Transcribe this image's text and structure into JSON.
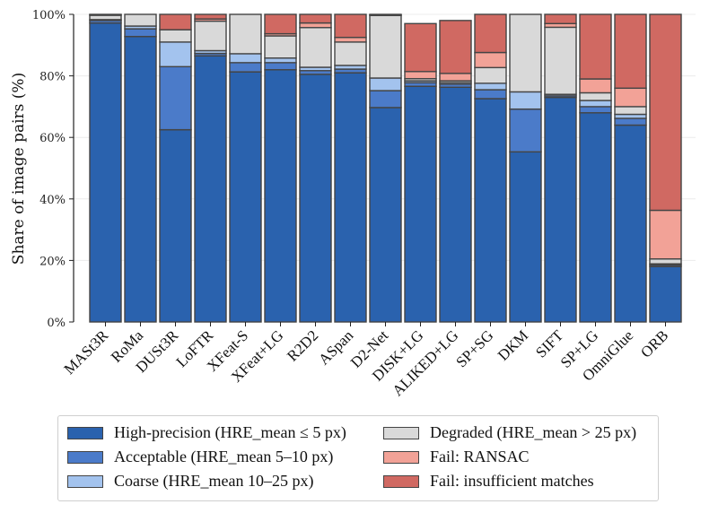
{
  "chart_data": {
    "type": "bar",
    "stacked": true,
    "title": "",
    "xlabel": "",
    "ylabel": "Share of image pairs (%)",
    "ylim": [
      0,
      100
    ],
    "yticks": [
      "0%",
      "20%",
      "40%",
      "60%",
      "80%",
      "100%"
    ],
    "ytick_values": [
      0,
      20,
      40,
      60,
      80,
      100
    ],
    "grid": true,
    "legend_position": "bottom",
    "categories": [
      "MASt3R",
      "RoMa",
      "DUSt3R",
      "LoFTR",
      "XFeat-S",
      "XFeat+LG",
      "R2D2",
      "ASpan",
      "D2-Net",
      "DISK+LG",
      "ALIKED+LG",
      "SP+SG",
      "DKM",
      "SIFT",
      "SP+LG",
      "OmniGlue",
      "ORB"
    ],
    "series": [
      {
        "name": "High-precision (HRE_mean ≤ 5 px)",
        "color": "#2a62ae",
        "values": [
          97.2,
          92.8,
          62.5,
          86.5,
          81.3,
          82.0,
          80.5,
          81.0,
          69.7,
          76.6,
          76.3,
          72.6,
          55.3,
          73.0,
          68.0,
          64.0,
          18.0
        ]
      },
      {
        "name": "Acceptable (HRE_mean 5–10 px)",
        "color": "#4b7bc9",
        "values": [
          0.8,
          2.5,
          20.5,
          0.8,
          3.0,
          2.3,
          1.2,
          1.2,
          5.5,
          1.2,
          1.0,
          2.9,
          13.9,
          0.5,
          2.0,
          2.2,
          0.5
        ]
      },
      {
        "name": "Coarse (HRE_mean 10–25 px)",
        "color": "#a3c3ee",
        "values": [
          0.3,
          0.9,
          8.0,
          0.9,
          2.9,
          1.5,
          1.1,
          1.2,
          4.1,
          0.6,
          0.5,
          2.1,
          5.6,
          0.5,
          2.0,
          1.3,
          0.4
        ]
      },
      {
        "name": "Degraded (HRE_mean > 25 px)",
        "color": "#d9d9d9",
        "values": [
          1.4,
          3.8,
          4.0,
          9.6,
          12.8,
          7.2,
          12.9,
          7.6,
          20.4,
          0.7,
          0.6,
          5.1,
          25.2,
          21.8,
          2.5,
          2.5,
          1.6
        ]
      },
      {
        "name": "Fail: RANSAC",
        "color": "#f2a297",
        "values": [
          0.2,
          0.0,
          0.0,
          0.7,
          0.0,
          0.7,
          1.5,
          1.5,
          0.1,
          2.3,
          2.4,
          4.9,
          0.0,
          1.2,
          4.5,
          6.0,
          15.8
        ]
      },
      {
        "name": "Fail: insufficient matches",
        "color": "#d06962",
        "values": [
          0.1,
          0.0,
          5.0,
          1.5,
          0.0,
          6.3,
          2.8,
          7.5,
          0.2,
          15.6,
          17.2,
          12.4,
          0.0,
          3.0,
          21.0,
          24.0,
          63.7
        ]
      }
    ]
  }
}
